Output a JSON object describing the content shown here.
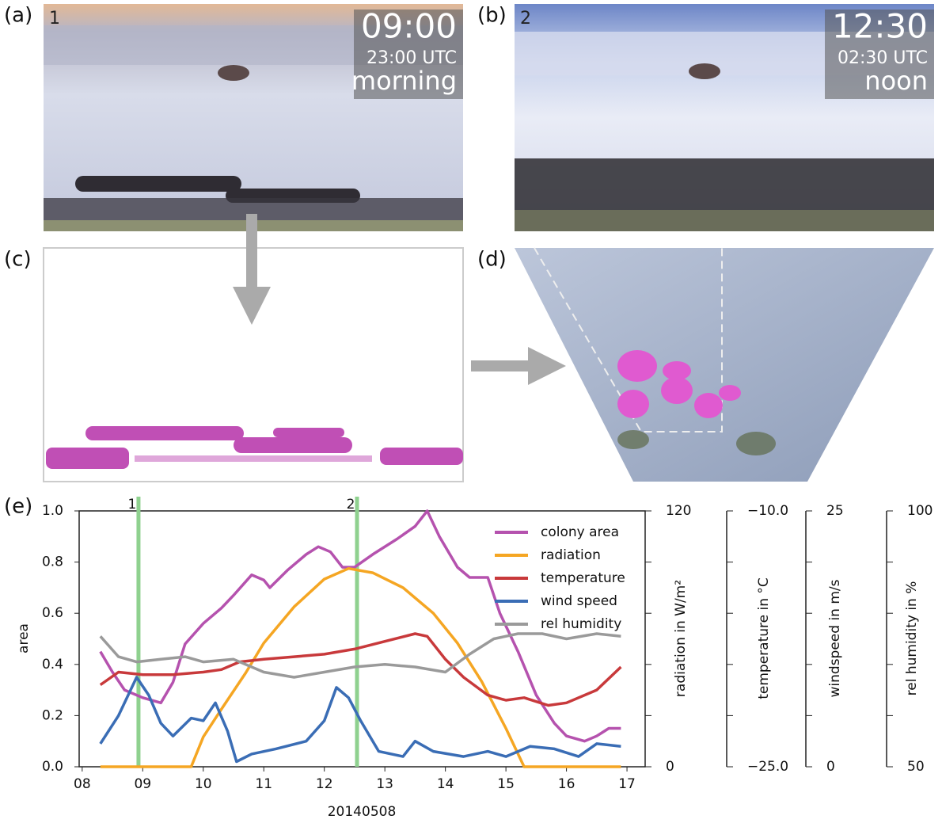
{
  "panels": {
    "a": {
      "label": "(a)",
      "number": "1",
      "time": "09:00",
      "utc": "23:00 UTC",
      "period": "morning"
    },
    "b": {
      "label": "(b)",
      "number": "2",
      "time": "12:30",
      "utc": "02:30 UTC",
      "period": "noon"
    },
    "c": {
      "label": "(c)"
    },
    "d": {
      "label": "(d)"
    },
    "e": {
      "label": "(e)"
    }
  },
  "chart_data": {
    "type": "line",
    "xlabel": "20140508",
    "xlim": [
      7.95,
      17.3
    ],
    "xticks": [
      {
        "value": 8,
        "label": "08"
      },
      {
        "value": 9,
        "label": "09"
      },
      10,
      11,
      12,
      13,
      14,
      15,
      16,
      17
    ],
    "ylabel": "area",
    "ylim": [
      0,
      1
    ],
    "yticks": [
      {
        "value": 0,
        "label": "0.0"
      },
      {
        "value": 0.2,
        "label": "0.2"
      },
      {
        "value": 0.4,
        "label": "0.4"
      },
      {
        "value": 0.6,
        "label": "0.6"
      },
      {
        "value": 0.8,
        "label": "0.8"
      },
      {
        "value": 1,
        "label": "1.0"
      }
    ],
    "right_axes": [
      {
        "label": "radiation  in W/m²",
        "lim": [
          0,
          120
        ],
        "ticks": [
          0,
          120
        ],
        "minor_ticks": [
          24,
          48,
          72,
          96
        ]
      },
      {
        "label": "temperature in °C",
        "lim": [
          -25,
          -10
        ],
        "ticks": [
          {
            "value": -25,
            "label": "−25.0"
          },
          {
            "value": -10,
            "label": "−10.0"
          }
        ],
        "minor_ticks": [
          -22,
          -19,
          -16,
          -13
        ]
      },
      {
        "label": "windspeed in m/s",
        "lim": [
          0,
          25
        ],
        "ticks": [
          0,
          25
        ],
        "minor_ticks": [
          5,
          10,
          15,
          20
        ]
      },
      {
        "label": "rel humidity in %",
        "lim": [
          50,
          100
        ],
        "ticks": [
          50,
          100
        ],
        "minor_ticks": [
          60,
          70,
          80,
          90
        ]
      }
    ],
    "markers": [
      {
        "x": 8.93,
        "label": "1"
      },
      {
        "x": 12.54,
        "label": "2"
      }
    ],
    "marker_color": "#8fd18f",
    "legend": "upper right",
    "series": [
      {
        "name": "colony area",
        "color": "#b552ae",
        "x": [
          8.3,
          8.5,
          8.7,
          9.0,
          9.3,
          9.5,
          9.7,
          10.0,
          10.3,
          10.5,
          10.8,
          11.0,
          11.1,
          11.4,
          11.7,
          11.9,
          12.1,
          12.3,
          12.5,
          12.8,
          13.2,
          13.5,
          13.7,
          13.9,
          14.2,
          14.4,
          14.7,
          14.9,
          15.2,
          15.5,
          15.8,
          16.0,
          16.3,
          16.5,
          16.7,
          16.9
        ],
        "values": [
          0.45,
          0.37,
          0.3,
          0.27,
          0.25,
          0.33,
          0.48,
          0.56,
          0.62,
          0.67,
          0.75,
          0.73,
          0.7,
          0.77,
          0.83,
          0.86,
          0.84,
          0.78,
          0.78,
          0.83,
          0.89,
          0.94,
          1.0,
          0.9,
          0.78,
          0.74,
          0.74,
          0.6,
          0.45,
          0.28,
          0.17,
          0.12,
          0.1,
          0.12,
          0.15,
          0.15
        ]
      },
      {
        "name": "radiation",
        "color": "#f5a623",
        "axis": 0,
        "x": [
          8.3,
          9.8,
          10.0,
          10.3,
          10.7,
          11.0,
          11.5,
          12.0,
          12.4,
          12.8,
          13.3,
          13.8,
          14.2,
          14.6,
          15.0,
          15.3,
          16.9
        ],
        "values": [
          0,
          0,
          14,
          27,
          44,
          58,
          75,
          88,
          93,
          91,
          84,
          72,
          58,
          40,
          18,
          0,
          0
        ]
      },
      {
        "name": "temperature",
        "color": "#c8393b",
        "axis": 1,
        "x": [
          8.3,
          8.6,
          9.0,
          9.5,
          10.0,
          10.3,
          10.6,
          11.0,
          11.5,
          12.0,
          12.5,
          13.0,
          13.5,
          13.7,
          14.0,
          14.3,
          14.7,
          15.0,
          15.3,
          15.7,
          16.0,
          16.5,
          16.9
        ],
        "values": [
          -20.2,
          -19.45,
          -19.6,
          -19.6,
          -19.45,
          -19.3,
          -18.85,
          -18.7,
          -18.55,
          -18.4,
          -18.1,
          -17.65,
          -17.2,
          -17.35,
          -18.7,
          -19.75,
          -20.8,
          -21.1,
          -20.95,
          -21.4,
          -21.25,
          -20.5,
          -19.15
        ]
      },
      {
        "name": "wind speed",
        "color": "#3a6db5",
        "axis": 2,
        "x": [
          8.3,
          8.6,
          8.9,
          9.1,
          9.3,
          9.5,
          9.8,
          10.0,
          10.2,
          10.4,
          10.55,
          10.8,
          11.2,
          11.7,
          12.0,
          12.2,
          12.4,
          12.6,
          12.9,
          13.3,
          13.5,
          13.8,
          14.3,
          14.7,
          15.0,
          15.4,
          15.8,
          16.2,
          16.5,
          16.9
        ],
        "values": [
          2.25,
          5,
          8.75,
          7,
          4.25,
          3,
          4.75,
          4.5,
          6.25,
          3.5,
          0.5,
          1.25,
          1.75,
          2.5,
          4.5,
          7.75,
          6.75,
          4.5,
          1.5,
          1,
          2.5,
          1.5,
          1,
          1.5,
          1,
          2,
          1.75,
          1,
          2.25,
          2
        ]
      },
      {
        "name": "rel humidity",
        "color": "#9a9a9a",
        "axis": 3,
        "x": [
          8.3,
          8.6,
          8.9,
          9.3,
          9.7,
          10.0,
          10.5,
          11.0,
          11.5,
          12.0,
          12.5,
          13.0,
          13.5,
          14.0,
          14.4,
          14.8,
          15.2,
          15.6,
          16.0,
          16.5,
          16.9
        ],
        "values": [
          75.5,
          71.5,
          70.5,
          71,
          71.5,
          70.5,
          71,
          68.5,
          67.5,
          68.5,
          69.5,
          70,
          69.5,
          68.5,
          72,
          75,
          76,
          76,
          75,
          76,
          75.5
        ]
      }
    ]
  }
}
